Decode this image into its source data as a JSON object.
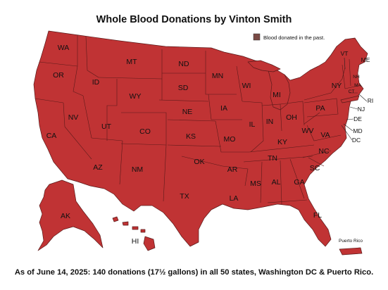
{
  "title": "Whole Blood Donations by Vinton Smith",
  "legend": {
    "label": "Blood donated in the past.",
    "swatch_color": "#7a4a45"
  },
  "caption": "As of June 14, 2025: 140 donations (17½ gallons) in all 50 states, Washington DC & Puerto Rico.",
  "fill_color": "#c03334",
  "border_color": "#5a1a1a",
  "states": [
    "WA",
    "OR",
    "CA",
    "ID",
    "NV",
    "MT",
    "WY",
    "UT",
    "AZ",
    "CO",
    "NM",
    "ND",
    "SD",
    "NE",
    "KS",
    "OK",
    "TX",
    "MN",
    "IA",
    "MO",
    "AR",
    "LA",
    "WI",
    "IL",
    "MI",
    "IN",
    "OH",
    "KY",
    "TN",
    "MS",
    "AL",
    "GA",
    "FL",
    "SC",
    "NC",
    "VA",
    "WV",
    "PA",
    "NY",
    "VT",
    "NH",
    "ME",
    "MA",
    "CT",
    "RI",
    "NJ",
    "DE",
    "MD",
    "DC",
    "AK",
    "HI"
  ],
  "territory_label": "Puerto Rico"
}
